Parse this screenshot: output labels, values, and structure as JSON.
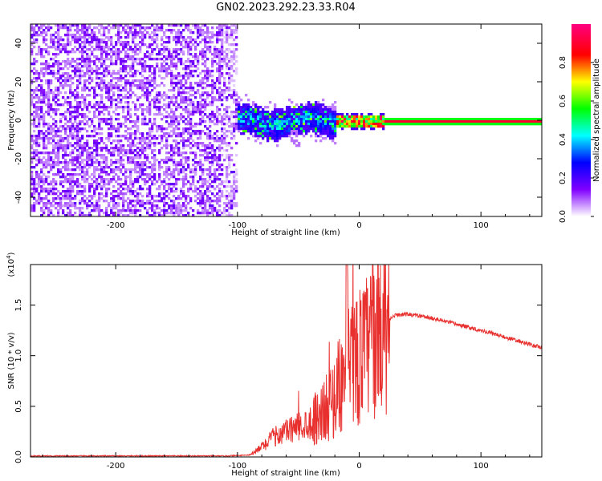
{
  "figure": {
    "title": "GN02.2023.292.23.33.R04"
  },
  "chart_data": [
    {
      "type": "heatmap",
      "title": "",
      "xlabel": "Height of straight line (km)",
      "ylabel": "Frequency (Hz)",
      "xlim": [
        -270,
        150
      ],
      "ylim": [
        -50,
        50
      ],
      "x_ticks": [
        -200,
        -100,
        0,
        100
      ],
      "x_tick_labels": [
        "-200",
        "-100",
        "0",
        "100"
      ],
      "y_ticks": [
        -40,
        -20,
        0,
        20,
        40
      ],
      "y_tick_labels": [
        "-40",
        "-20",
        "0",
        "20",
        "40"
      ],
      "grid": false,
      "colorbar": {
        "label": "Normalized spectral amplitude",
        "range": [
          0,
          1
        ],
        "ticks": [
          0,
          0.2,
          0.4,
          0.6,
          0.8
        ],
        "tick_labels": [
          "0.0",
          "0.2",
          "0.4",
          "0.6",
          "0.8"
        ],
        "colormap": [
          "#ffffff",
          "#8000ff",
          "#0000ff",
          "#00ffff",
          "#00ff00",
          "#ffff00",
          "#ff0000",
          "#ff0080"
        ]
      },
      "regions": [
        {
          "x_range": [
            -270,
            -100
          ],
          "y_range": [
            -50,
            50
          ],
          "amplitude": 0.1,
          "pattern": "noise"
        },
        {
          "x_range": [
            -105,
            -20
          ],
          "y_range": [
            -8,
            8
          ],
          "amplitude": 0.3,
          "pattern": "noisy band"
        },
        {
          "x_range": [
            -20,
            150
          ],
          "y_range": [
            -1,
            1
          ],
          "amplitude": 0.95,
          "pattern": "line at 0 Hz"
        }
      ]
    },
    {
      "type": "line",
      "title": "",
      "xlabel": "Height of straight line (km)",
      "ylabel": "SNR (10 * v/v)",
      "y_scale_label": "(x10",
      "y_scale_exponent": "4",
      "y_scale_suffix": ")",
      "xlim": [
        -270,
        150
      ],
      "ylim": [
        0,
        1.9
      ],
      "x_ticks": [
        -200,
        -100,
        0,
        100
      ],
      "x_tick_labels": [
        "-200",
        "-100",
        "0",
        "100"
      ],
      "y_ticks": [
        0,
        0.5,
        1.0,
        1.5
      ],
      "y_tick_labels": [
        "0.0",
        "0.5",
        "1.0",
        "1.5"
      ],
      "grid": false,
      "series": [
        {
          "color": "#e8302e",
          "x": [
            -270,
            -200,
            -150,
            -110,
            -100,
            -90,
            -85,
            -80,
            -70,
            -60,
            -50,
            -40,
            -30,
            -25,
            -20,
            -15,
            -10,
            -5,
            0,
            5,
            10,
            15,
            20,
            25,
            30,
            40,
            50,
            60,
            70,
            80,
            90,
            100,
            110,
            120,
            130,
            140,
            150
          ],
          "y": [
            0.01,
            0.01,
            0.01,
            0.01,
            0.015,
            0.02,
            0.05,
            0.1,
            0.2,
            0.25,
            0.3,
            0.35,
            0.45,
            0.5,
            0.6,
            0.75,
            0.85,
            0.95,
            1.0,
            1.05,
            1.15,
            1.25,
            1.32,
            1.37,
            1.4,
            1.41,
            1.39,
            1.37,
            1.34,
            1.31,
            1.28,
            1.25,
            1.22,
            1.18,
            1.15,
            1.11,
            1.08
          ]
        }
      ]
    }
  ]
}
